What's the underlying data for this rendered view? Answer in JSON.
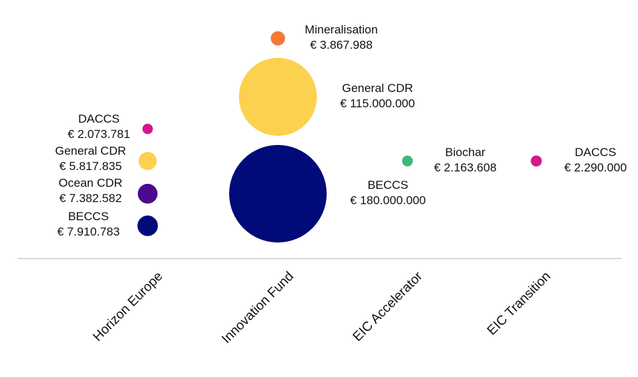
{
  "chart_data": {
    "type": "bubble",
    "categories": [
      "Horizon Europe",
      "Innovation Fund",
      "EIC  Accelerator",
      "EIC  Transition"
    ],
    "currency": "€",
    "colors": {
      "Mineralisation": "#F47A36",
      "General CDR": "#FDD150",
      "BECCS": "#000A78",
      "Ocean CDR": "#4B0A8C",
      "DACCS": "#D5168C",
      "Biochar": "#3DB87A",
      "axis": "#cfcfcf"
    },
    "points": [
      {
        "category": "Horizon Europe",
        "name": "DACCS",
        "value_label": "€ 2.073.781",
        "value": 2073781
      },
      {
        "category": "Horizon Europe",
        "name": "General CDR",
        "value_label": "€ 5.817.835",
        "value": 5817835
      },
      {
        "category": "Horizon Europe",
        "name": "Ocean CDR",
        "value_label": "€ 7.382.582",
        "value": 7382582
      },
      {
        "category": "Horizon Europe",
        "name": "BECCS",
        "value_label": "€ 7.910.783",
        "value": 7910783
      },
      {
        "category": "Innovation Fund",
        "name": "Mineralisation",
        "value_label": "€ 3.867.988",
        "value": 3867988
      },
      {
        "category": "Innovation Fund",
        "name": "General CDR",
        "value_label": "€ 115.000.000",
        "value": 115000000
      },
      {
        "category": "Innovation Fund",
        "name": "BECCS",
        "value_label": "€ 180.000.000",
        "value": 180000000
      },
      {
        "category": "EIC  Accelerator",
        "name": "Biochar",
        "value_label": "€ 2.163.608",
        "value": 2163608
      },
      {
        "category": "EIC  Transition",
        "name": "DACCS",
        "value_label": "€ 2.290.000",
        "value": 2290000
      }
    ]
  }
}
